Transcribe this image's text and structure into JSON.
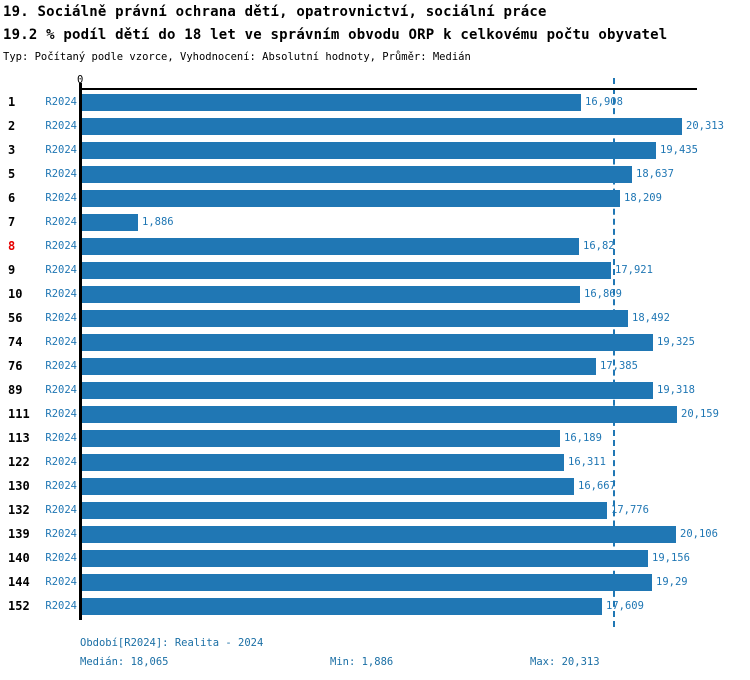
{
  "header": {
    "title": "19. Sociálně právní ochrana dětí, opatrovnictví, sociální práce",
    "subtitle": "19.2 % podíl dětí do 18 let ve správním obvodu ORP k celkovému počtu obyvatel",
    "meta": "Typ: Počítaný podle vzorce, Vyhodnocení: Absolutní hodnoty, Průměr: Medián"
  },
  "chart_data": {
    "type": "bar",
    "orientation": "horizontal",
    "title": "19. Sociálně právní ochrana dětí, opatrovnictví, sociální práce",
    "x_axis": {
      "origin_label": "0",
      "max": 20313,
      "gridlines": false
    },
    "median_value": 18065,
    "median_line": "dashed-vertical",
    "legend_position": "none",
    "rows": [
      {
        "id": "1",
        "period": "R2024",
        "value": 16908,
        "label": "16,908",
        "highlight": false
      },
      {
        "id": "2",
        "period": "R2024",
        "value": 20313,
        "label": "20,313",
        "highlight": false
      },
      {
        "id": "3",
        "period": "R2024",
        "value": 19435,
        "label": "19,435",
        "highlight": false
      },
      {
        "id": "5",
        "period": "R2024",
        "value": 18637,
        "label": "18,637",
        "highlight": false
      },
      {
        "id": "6",
        "period": "R2024",
        "value": 18209,
        "label": "18,209",
        "highlight": false
      },
      {
        "id": "7",
        "period": "R2024",
        "value": 1886,
        "label": "1,886",
        "highlight": false
      },
      {
        "id": "8",
        "period": "R2024",
        "value": 16820,
        "label": "16,82",
        "highlight": true
      },
      {
        "id": "9",
        "period": "R2024",
        "value": 17921,
        "label": "17,921",
        "highlight": false
      },
      {
        "id": "10",
        "period": "R2024",
        "value": 16869,
        "label": "16,869",
        "highlight": false
      },
      {
        "id": "56",
        "period": "R2024",
        "value": 18492,
        "label": "18,492",
        "highlight": false
      },
      {
        "id": "74",
        "period": "R2024",
        "value": 19325,
        "label": "19,325",
        "highlight": false
      },
      {
        "id": "76",
        "period": "R2024",
        "value": 17385,
        "label": "17,385",
        "highlight": false
      },
      {
        "id": "89",
        "period": "R2024",
        "value": 19318,
        "label": "19,318",
        "highlight": false
      },
      {
        "id": "111",
        "period": "R2024",
        "value": 20159,
        "label": "20,159",
        "highlight": false
      },
      {
        "id": "113",
        "period": "R2024",
        "value": 16189,
        "label": "16,189",
        "highlight": false
      },
      {
        "id": "122",
        "period": "R2024",
        "value": 16311,
        "label": "16,311",
        "highlight": false
      },
      {
        "id": "130",
        "period": "R2024",
        "value": 16667,
        "label": "16,667",
        "highlight": false
      },
      {
        "id": "132",
        "period": "R2024",
        "value": 17776,
        "label": "17,776",
        "highlight": false
      },
      {
        "id": "139",
        "period": "R2024",
        "value": 20106,
        "label": "20,106",
        "highlight": false
      },
      {
        "id": "140",
        "period": "R2024",
        "value": 19156,
        "label": "19,156",
        "highlight": false
      },
      {
        "id": "144",
        "period": "R2024",
        "value": 19290,
        "label": "19,29",
        "highlight": false
      },
      {
        "id": "152",
        "period": "R2024",
        "value": 17609,
        "label": "17,609",
        "highlight": false
      }
    ]
  },
  "footer": {
    "period_line": "Období[R2024]: Realita - 2024",
    "median": "Medián: 18,065",
    "min": "Min: 1,886",
    "max": "Max: 20,313"
  },
  "colors": {
    "bar": "#2077b4",
    "accent_text": "#2077b4",
    "footer_text": "#1b6fa5",
    "highlight_row_id": "#e60000",
    "axis": "#000000"
  }
}
